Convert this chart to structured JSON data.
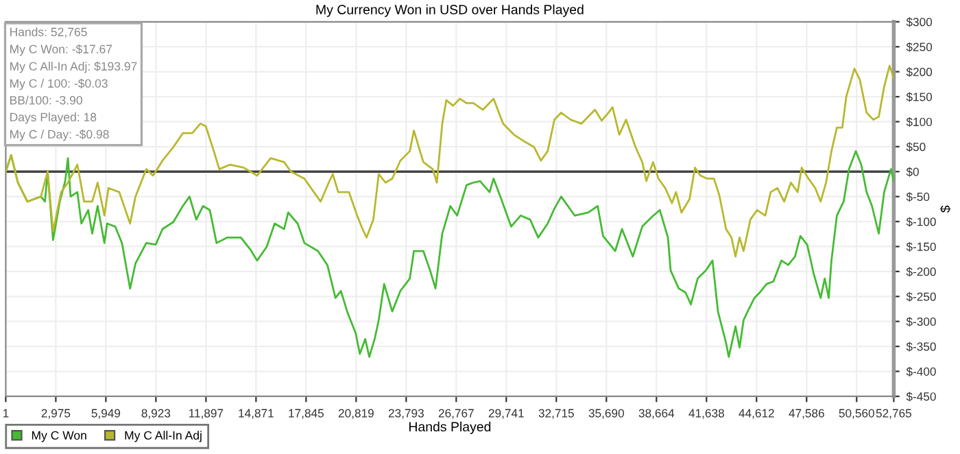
{
  "chart_data": {
    "type": "line",
    "title": "My Currency Won in USD over Hands Played",
    "xlabel": "Hands Played",
    "ylabel": "$",
    "annotations": [
      "Hands: 52,765",
      "My C Won: -$17.67",
      "My C All-In Adj: $193.97",
      "My C / 100: -$0.03",
      "BB/100: -3.90",
      "Days Played: 18",
      "My C / Day: -$0.98"
    ],
    "series": [
      {
        "name": "My C Won",
        "color": "#44bb33",
        "x": [
          1,
          321,
          723,
          1285,
          2088,
          2329,
          2489,
          2811,
          3212,
          3533,
          3694,
          3854,
          4256,
          4497,
          4898,
          5139,
          5460,
          5862,
          6023,
          6504,
          6906,
          7388,
          7709,
          8351,
          8913,
          9315,
          9957,
          10519,
          10921,
          11322,
          11724,
          12125,
          12527,
          13169,
          13972,
          14534,
          14936,
          15498,
          15980,
          16542,
          16783,
          17345,
          17746,
          18549,
          19111,
          19593,
          19914,
          20316,
          20798,
          21039,
          21360,
          21601,
          21922,
          22163,
          22484,
          22966,
          23448,
          24010,
          24251,
          24813,
          25214,
          25535,
          25937,
          26419,
          26820,
          27382,
          27784,
          28185,
          28747,
          28988,
          29390,
          30032,
          30594,
          31156,
          31638,
          32200,
          32602,
          33003,
          33806,
          34609,
          35171,
          35493,
          36215,
          36617,
          37259,
          37821,
          38383,
          38865,
          39347,
          39508,
          39989,
          40391,
          40712,
          41114,
          41595,
          41997,
          42318,
          42800,
          42961,
          43362,
          43603,
          43844,
          44085,
          44486,
          44807,
          45209,
          45610,
          46092,
          46494,
          46895,
          47216,
          47618,
          48019,
          48421,
          48662,
          48903,
          49063,
          49385,
          49786,
          50107,
          50509,
          50830,
          51151,
          51472,
          51874,
          52195,
          52597,
          52765
        ],
        "values": [
          0,
          33,
          -22,
          -60,
          -50,
          -60,
          0,
          -137,
          -60,
          -19,
          27,
          -50,
          -41,
          -104,
          -77,
          -124,
          -69,
          -143,
          -104,
          -110,
          -143,
          -234,
          -184,
          -143,
          -146,
          -115,
          -101,
          -69,
          -50,
          -96,
          -69,
          -77,
          -143,
          -132,
          -132,
          -156,
          -178,
          -151,
          -104,
          -115,
          -82,
          -104,
          -143,
          -159,
          -187,
          -253,
          -239,
          -283,
          -324,
          -365,
          -335,
          -371,
          -335,
          -297,
          -225,
          -280,
          -239,
          -214,
          -159,
          -159,
          -198,
          -234,
          -124,
          -69,
          -88,
          -27,
          -22,
          -19,
          -41,
          -14,
          -50,
          -110,
          -88,
          -96,
          -132,
          -104,
          -74,
          -50,
          -88,
          -82,
          -69,
          -129,
          -159,
          -115,
          -170,
          -110,
          -91,
          -77,
          -132,
          -198,
          -234,
          -242,
          -266,
          -214,
          -198,
          -178,
          -280,
          -343,
          -371,
          -310,
          -352,
          -297,
          -280,
          -253,
          -242,
          -225,
          -220,
          -178,
          -187,
          -170,
          -129,
          -146,
          -206,
          -253,
          -214,
          -253,
          -178,
          -88,
          -60,
          5,
          41,
          14,
          -41,
          -69,
          -124,
          -41,
          5,
          -19
        ]
      },
      {
        "name": "My C All-In Adj",
        "color": "#b8b82e",
        "x": [
          1,
          321,
          723,
          1285,
          2088,
          2489,
          2811,
          3292,
          3694,
          4256,
          4657,
          5139,
          5460,
          5862,
          6103,
          6745,
          7388,
          7709,
          8351,
          8753,
          9315,
          9957,
          10519,
          11081,
          11563,
          11884,
          12366,
          12687,
          13330,
          14133,
          14936,
          15739,
          16542,
          16943,
          17746,
          18308,
          18710,
          19192,
          19433,
          19754,
          20396,
          20878,
          21199,
          21440,
          21842,
          22163,
          22564,
          22966,
          23448,
          24010,
          24251,
          24813,
          25375,
          25616,
          25937,
          26178,
          26579,
          26981,
          27382,
          27784,
          28346,
          28988,
          29550,
          30193,
          30835,
          31397,
          31799,
          32200,
          32602,
          33003,
          33565,
          34208,
          35011,
          35412,
          35814,
          36055,
          36456,
          36858,
          37420,
          37821,
          38062,
          38464,
          38785,
          39186,
          39588,
          39829,
          40150,
          40632,
          40953,
          41274,
          41676,
          42077,
          42398,
          42800,
          43121,
          43362,
          43603,
          43844,
          44245,
          44647,
          45129,
          45450,
          45851,
          46253,
          46654,
          47056,
          47297,
          47698,
          48100,
          48421,
          48742,
          49063,
          49385,
          49706,
          49947,
          50428,
          50750,
          51151,
          51553,
          51874,
          52195,
          52516,
          52765
        ],
        "values": [
          0,
          33,
          -22,
          -60,
          -50,
          0,
          -120,
          -41,
          -22,
          14,
          -60,
          -60,
          -22,
          -88,
          -33,
          -41,
          -104,
          -50,
          5,
          -8,
          22,
          49,
          77,
          77,
          96,
          91,
          41,
          5,
          14,
          8,
          -8,
          27,
          19,
          0,
          -14,
          -41,
          -60,
          -22,
          -5,
          -41,
          -41,
          -88,
          -115,
          -132,
          -96,
          -5,
          -22,
          -14,
          22,
          41,
          82,
          19,
          5,
          -22,
          96,
          143,
          132,
          146,
          137,
          137,
          124,
          146,
          96,
          74,
          60,
          49,
          22,
          41,
          104,
          118,
          104,
          96,
          124,
          102,
          118,
          129,
          74,
          104,
          49,
          19,
          -19,
          19,
          -14,
          -33,
          -63,
          -41,
          -82,
          -55,
          8,
          -8,
          -14,
          -14,
          -47,
          -115,
          -132,
          -170,
          -132,
          -159,
          -96,
          -77,
          -88,
          -41,
          -33,
          -60,
          -22,
          -41,
          8,
          -14,
          -33,
          -60,
          -22,
          41,
          88,
          88,
          151,
          206,
          184,
          118,
          104,
          110,
          170,
          212,
          187
        ]
      }
    ],
    "xlim": [
      1,
      52765
    ],
    "xticks": [
      1,
      {
        "value": 2975,
        "label": "2,975"
      },
      {
        "value": 5949,
        "label": "5,949"
      },
      {
        "value": 8923,
        "label": "8,923"
      },
      {
        "value": 11897,
        "label": "11,897"
      },
      {
        "value": 14871,
        "label": "14,871"
      },
      {
        "value": 17845,
        "label": "17,845"
      },
      {
        "value": 20819,
        "label": "20,819"
      },
      {
        "value": 23793,
        "label": "23,793"
      },
      {
        "value": 26767,
        "label": "26,767"
      },
      {
        "value": 29741,
        "label": "29,741"
      },
      {
        "value": 32715,
        "label": "32,715"
      },
      {
        "value": 35690,
        "label": "35,690"
      },
      {
        "value": 38664,
        "label": "38,664"
      },
      {
        "value": 41638,
        "label": "41,638"
      },
      {
        "value": 44612,
        "label": "44,612"
      },
      {
        "value": 47586,
        "label": "47,586"
      },
      {
        "value": 50560,
        "label": "50,560"
      },
      {
        "value": 52765,
        "label": "52,765"
      }
    ],
    "ylim": [
      -450,
      300
    ],
    "yticks": [
      {
        "value": -450,
        "label": "$-450"
      },
      {
        "value": -400,
        "label": "$-400"
      },
      {
        "value": -350,
        "label": "$-350"
      },
      {
        "value": -300,
        "label": "$-300"
      },
      {
        "value": -250,
        "label": "$-250"
      },
      {
        "value": -200,
        "label": "$-200"
      },
      {
        "value": -150,
        "label": "$-150"
      },
      {
        "value": -100,
        "label": "$-100"
      },
      {
        "value": -50,
        "label": "$-50"
      },
      {
        "value": 0,
        "label": "$0"
      },
      {
        "value": 50,
        "label": "$50"
      },
      {
        "value": 100,
        "label": "$100"
      },
      {
        "value": 150,
        "label": "$150"
      },
      {
        "value": 200,
        "label": "$200"
      },
      {
        "value": 250,
        "label": "$250"
      },
      {
        "value": 300,
        "label": "$300"
      }
    ],
    "ref_lines": [
      {
        "axis": "y",
        "value": 0,
        "color": "#444444"
      }
    ],
    "grid": true,
    "legend": "bottom left",
    "marker": "none",
    "line_style": "solid"
  }
}
